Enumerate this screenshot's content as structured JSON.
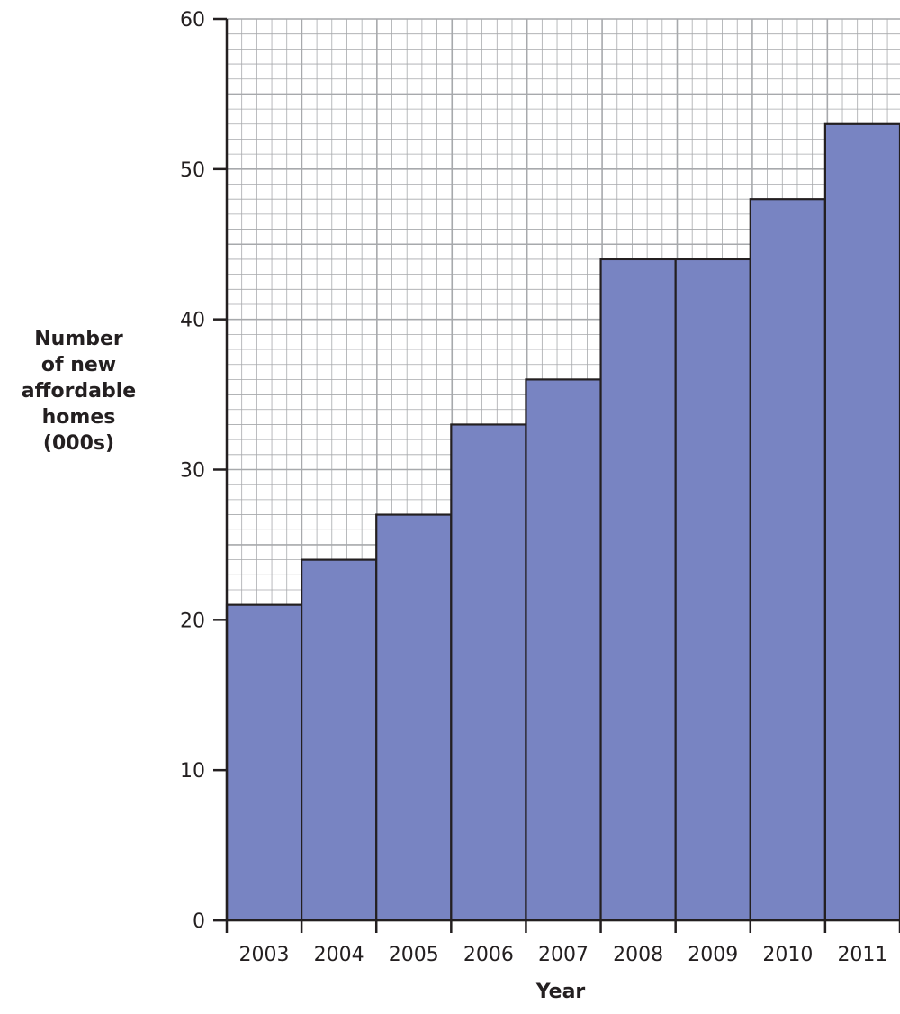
{
  "chart_data": {
    "type": "bar",
    "title": "",
    "xlabel": "Year",
    "ylabel_lines": [
      "Number",
      "of new",
      "affordable",
      "homes",
      "(000s)"
    ],
    "categories": [
      "2003",
      "2004",
      "2005",
      "2006",
      "2007",
      "2008",
      "2009",
      "2010",
      "2011"
    ],
    "series": [
      {
        "values": [
          21,
          24,
          27,
          33,
          36,
          44,
          44,
          48,
          53
        ]
      }
    ],
    "ylim": [
      0,
      60
    ],
    "yticks": [
      0,
      10,
      20,
      30,
      40,
      50,
      60
    ],
    "grid": true,
    "minor_grid_step": 1,
    "major_grid_step": 5,
    "legend": "none",
    "bar_color": "#7884c2",
    "bar_edge_color": "#231f20",
    "grid_color": "#a7a9ac"
  }
}
